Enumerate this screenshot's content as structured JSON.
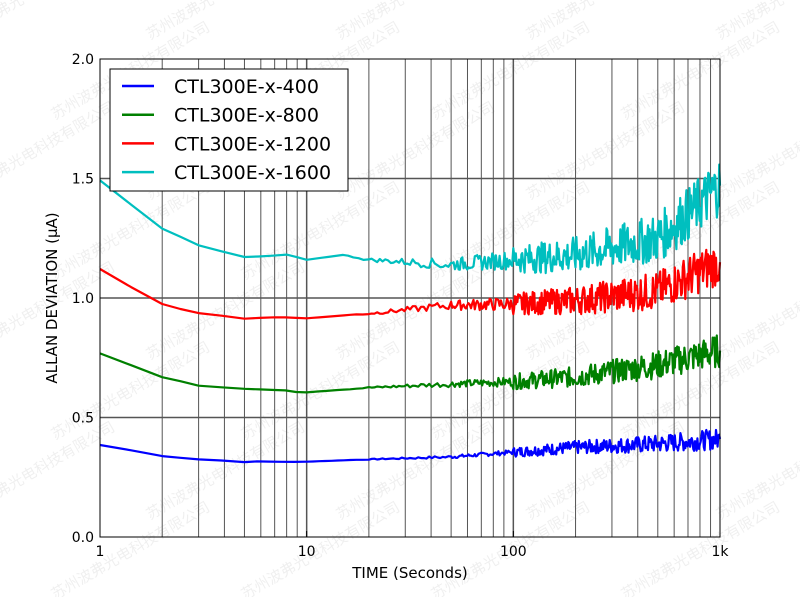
{
  "watermark": "苏州波弗光电科技有限公司",
  "chart_data": {
    "type": "line",
    "title": "",
    "xlabel": "TIME (Seconds)",
    "ylabel": "ALLAN DEVIATION (µA)",
    "xscale": "log",
    "xlim": [
      1,
      1000
    ],
    "ylim": [
      0.0,
      2.0
    ],
    "xticks": [
      1,
      10,
      100,
      1000
    ],
    "xtick_labels": [
      "1",
      "10",
      "100",
      "1k"
    ],
    "yticks": [
      0.0,
      0.5,
      1.0,
      1.5,
      2.0
    ],
    "ytick_labels": [
      "0.0",
      "0.5",
      "1.0",
      "1.5",
      "2.0"
    ],
    "grid": "major and minor",
    "legend_position": "top-left",
    "series": [
      {
        "name": "CTL300E-x-400",
        "color": "#0000ff",
        "x": [
          1,
          2,
          3,
          5,
          10,
          20,
          50,
          100,
          200,
          500,
          1000
        ],
        "y": [
          0.385,
          0.34,
          0.325,
          0.315,
          0.315,
          0.325,
          0.335,
          0.355,
          0.375,
          0.39,
          0.41
        ]
      },
      {
        "name": "CTL300E-x-800",
        "color": "#008000",
        "x": [
          1,
          2,
          3,
          5,
          7,
          10,
          20,
          50,
          100,
          200,
          500,
          1000
        ],
        "y": [
          0.77,
          0.67,
          0.635,
          0.62,
          0.615,
          0.605,
          0.625,
          0.64,
          0.65,
          0.67,
          0.72,
          0.78
        ]
      },
      {
        "name": "CTL300E-x-1200",
        "color": "#ff0000",
        "x": [
          1,
          2,
          3,
          5,
          7,
          10,
          20,
          50,
          100,
          200,
          500,
          1000
        ],
        "y": [
          1.12,
          0.975,
          0.935,
          0.915,
          0.92,
          0.915,
          0.935,
          0.97,
          0.975,
          0.99,
          1.03,
          1.15
        ]
      },
      {
        "name": "CTL300E-x-1600",
        "color": "#00bfbf",
        "x": [
          1,
          2,
          3,
          5,
          8,
          10,
          15,
          20,
          50,
          100,
          200,
          500,
          700,
          1000
        ],
        "y": [
          1.49,
          1.29,
          1.22,
          1.17,
          1.18,
          1.16,
          1.18,
          1.16,
          1.14,
          1.16,
          1.18,
          1.25,
          1.35,
          1.47
        ]
      }
    ]
  }
}
